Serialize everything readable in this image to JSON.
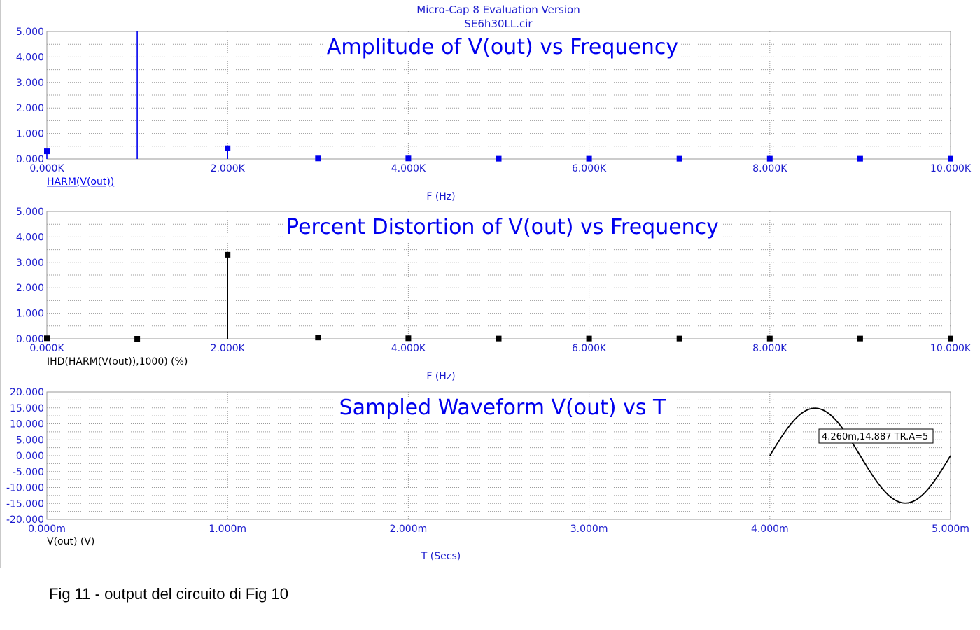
{
  "window": {
    "header_line1": "Micro-Cap 8 Evaluation Version",
    "header_line2": "SE6h30LL.cir",
    "caption": "Fig 11 - output del circuito di Fig 10"
  },
  "colors": {
    "blue": "#0000ee",
    "black": "#000000",
    "grid": "#9a9a9a",
    "text_blue": "#1a1acd"
  },
  "chart_data": [
    {
      "type": "bar",
      "title": "Amplitude of V(out) vs Frequency",
      "xlabel": "F (Hz)",
      "ylabel": "HARM(V(out))",
      "ylabel_underlined": true,
      "xlim": [
        0,
        10000
      ],
      "ylim": [
        0,
        5
      ],
      "xticks": [
        "0.000K",
        "2.000K",
        "4.000K",
        "6.000K",
        "8.000K",
        "10.000K"
      ],
      "yticks": [
        "0.000",
        "1.000",
        "2.000",
        "3.000",
        "4.000",
        "5.000"
      ],
      "series": [
        {
          "color": "#0000ee",
          "x": [
            0,
            1000,
            2000,
            3000,
            4000,
            5000,
            6000,
            7000,
            8000,
            9000,
            10000
          ],
          "y": [
            0.3,
            5.0,
            0.42,
            0.02,
            0.02,
            0.01,
            0.01,
            0.01,
            0.01,
            0.01,
            0.01
          ]
        }
      ]
    },
    {
      "type": "bar",
      "title": "Percent Distortion of V(out) vs Frequency",
      "xlabel": "F (Hz)",
      "ylabel": "IHD(HARM(V(out)),1000) (%)",
      "xlim": [
        0,
        10000
      ],
      "ylim": [
        0,
        5
      ],
      "xticks": [
        "0.000K",
        "2.000K",
        "4.000K",
        "6.000K",
        "8.000K",
        "10.000K"
      ],
      "yticks": [
        "0.000",
        "1.000",
        "2.000",
        "3.000",
        "4.000",
        "5.000"
      ],
      "series": [
        {
          "color": "#000000",
          "x": [
            0,
            1000,
            2000,
            3000,
            4000,
            5000,
            6000,
            7000,
            8000,
            9000,
            10000
          ],
          "y": [
            0.02,
            0.0,
            3.3,
            0.05,
            0.02,
            0.01,
            0.01,
            0.01,
            0.01,
            0.01,
            0.01
          ]
        }
      ]
    },
    {
      "type": "line",
      "title": "Sampled Waveform  V(out) vs T",
      "xlabel": "T (Secs)",
      "ylabel": "V(out) (V)",
      "xlim": [
        0,
        0.005
      ],
      "ylim": [
        -20,
        20
      ],
      "xticks": [
        "0.000m",
        "1.000m",
        "2.000m",
        "3.000m",
        "4.000m",
        "5.000m"
      ],
      "yticks": [
        "-20.000",
        "-15.000",
        "-10.000",
        "-5.000",
        "0.000",
        "5.000",
        "10.000",
        "15.000",
        "20.000"
      ],
      "series": [
        {
          "color": "#000000",
          "signal": {
            "amplitude": 14.887,
            "frequency_hz": 1000,
            "t_start": 0.004,
            "t_end": 0.005
          }
        }
      ],
      "annotation": {
        "text": "4.260m,14.887 TR.A=5",
        "x": 0.00426,
        "y": 14.887
      }
    }
  ]
}
